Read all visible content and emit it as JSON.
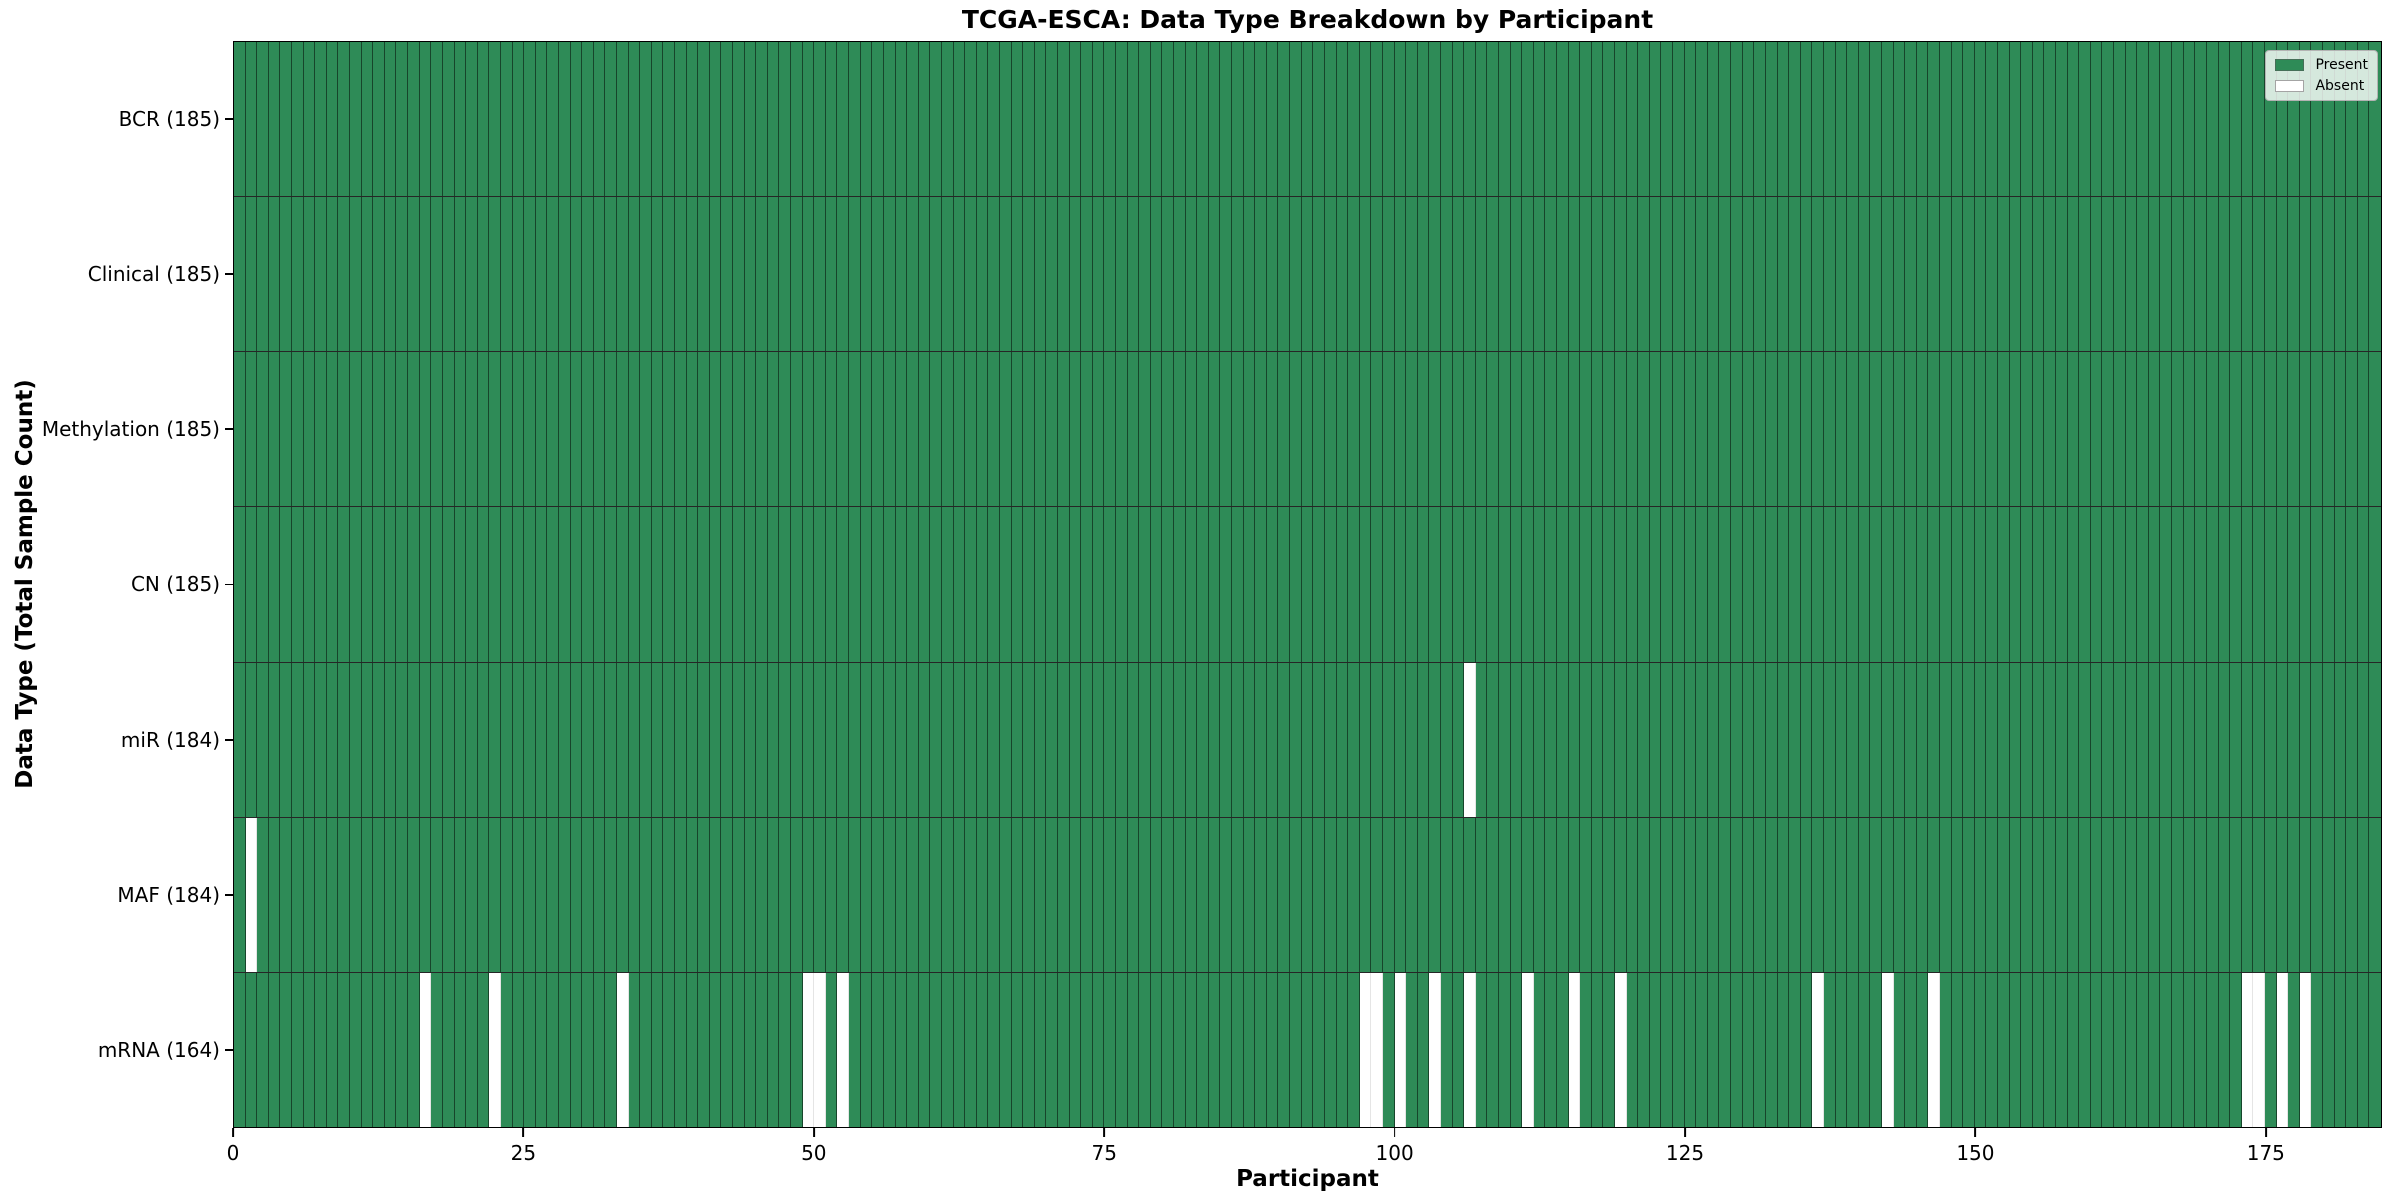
{
  "chart_data": {
    "type": "heatmap",
    "title": "TCGA-ESCA: Data Type Breakdown by Participant",
    "xlabel": "Participant",
    "ylabel": "Data Type (Total Sample Count)",
    "n_participants": 185,
    "x_ticks": [
      0,
      25,
      50,
      75,
      100,
      125,
      150,
      175
    ],
    "colors": {
      "present": "#2E8B57",
      "absent": "#FFFFFF"
    },
    "legend_position": "upper right",
    "grid": "cell-edges",
    "legend": [
      {
        "label": "Present",
        "color": "#2E8B57"
      },
      {
        "label": "Absent",
        "color": "#FFFFFF"
      }
    ],
    "rows": [
      {
        "name": "BCR",
        "count": 185,
        "label": "BCR (185)",
        "absent": []
      },
      {
        "name": "Clinical",
        "count": 185,
        "label": "Clinical (185)",
        "absent": []
      },
      {
        "name": "Methylation",
        "count": 185,
        "label": "Methylation (185)",
        "absent": []
      },
      {
        "name": "CN",
        "count": 185,
        "label": "CN (185)",
        "absent": []
      },
      {
        "name": "miR",
        "count": 184,
        "label": "miR (184)",
        "absent": [
          106
        ]
      },
      {
        "name": "MAF",
        "count": 184,
        "label": "MAF (184)",
        "absent": [
          1
        ]
      },
      {
        "name": "mRNA",
        "count": 164,
        "label": "mRNA (164)",
        "absent": [
          16,
          22,
          33,
          49,
          50,
          52,
          97,
          98,
          100,
          103,
          106,
          111,
          115,
          119,
          136,
          142,
          146,
          173,
          174,
          176,
          178
        ]
      }
    ]
  }
}
